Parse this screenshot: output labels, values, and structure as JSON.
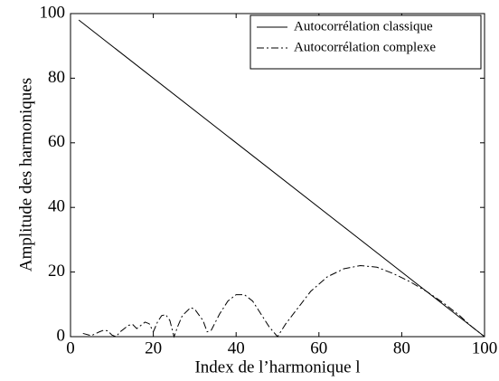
{
  "chart_data": {
    "type": "line",
    "xlabel": "Index de l’harmonique l",
    "ylabel": "Amplitude des harmoniques",
    "xlim": [
      0,
      100
    ],
    "ylim": [
      0,
      100
    ],
    "xticks": [
      0,
      20,
      40,
      60,
      80,
      100
    ],
    "yticks": [
      0,
      20,
      40,
      60,
      80,
      100
    ],
    "legend": "upper right",
    "series": [
      {
        "name": "Autocorrélation classique",
        "color": "#000000",
        "linestyle": "solid",
        "x": [
          2,
          100
        ],
        "values": [
          98,
          0
        ]
      },
      {
        "name": "Autocorrélation complexe",
        "color": "#000000",
        "linestyle": "dashdot",
        "x": [
          3,
          5,
          7,
          8,
          9,
          10,
          11,
          12,
          14,
          15,
          16,
          17,
          18,
          19,
          20,
          21,
          22,
          23,
          24,
          25,
          26,
          27,
          29,
          30,
          32,
          33,
          34,
          36,
          38,
          40,
          42,
          44,
          46,
          48,
          50,
          52,
          55,
          58,
          62,
          66,
          70,
          74,
          78,
          82,
          86,
          90,
          94,
          97,
          100
        ],
        "values": [
          1,
          0.3,
          1.5,
          2,
          1.8,
          0.5,
          0,
          1.5,
          3.5,
          3.8,
          2.5,
          3.5,
          4.5,
          4,
          1.5,
          4.5,
          6.5,
          6.8,
          5,
          0,
          3.5,
          6.5,
          9,
          8.5,
          5,
          1.5,
          2,
          7,
          11,
          13,
          13,
          11,
          7,
          3,
          0,
          4,
          9,
          14,
          18.5,
          21,
          22,
          21.5,
          19.5,
          17,
          14,
          10.5,
          6.5,
          3,
          0
        ]
      }
    ]
  }
}
